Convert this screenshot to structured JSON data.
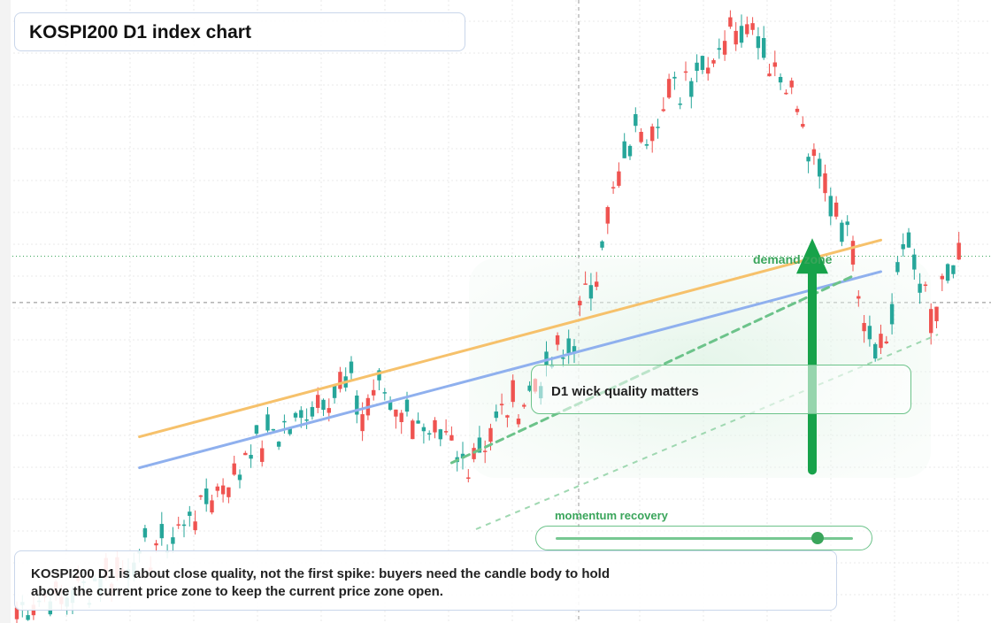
{
  "title": "KOSPI200 D1 index chart",
  "note": "KOSPI200 D1 is about close quality, not the first spike: buyers need the candle body to hold above the current price zone to keep the current price zone open.",
  "callout": "D1 wick quality matters",
  "zone_label": "demand zone",
  "momentum": {
    "label": "momentum recovery",
    "level": 0.88
  },
  "colors": {
    "up": "#26a69a",
    "down": "#ef5350",
    "orange_line": "#f6c16b",
    "blue_line": "#8fb0ee",
    "green": "#3aa55b",
    "grid": "#e8e8e8"
  },
  "chart_data": {
    "type": "candlestick",
    "title": "KOSPI200 D1 index chart",
    "ylim": [
      0,
      100
    ],
    "candles_count": 170,
    "current_price_level": 51.8,
    "trendlines": [
      {
        "name": "",
        "color": "orange",
        "from": [
          22,
          30.1
        ],
        "to": [
          155,
          61.9
        ]
      },
      {
        "name": "",
        "color": "blue",
        "from": [
          22,
          25.1
        ],
        "to": [
          155,
          56.8
        ]
      },
      {
        "name": "",
        "color": "green-dashed",
        "from": [
          78,
          25.9
        ],
        "to": [
          150,
          56.1
        ]
      }
    ],
    "arrow": {
      "direction": "up",
      "from_level": 24.7,
      "to_level": 62.2
    }
  }
}
